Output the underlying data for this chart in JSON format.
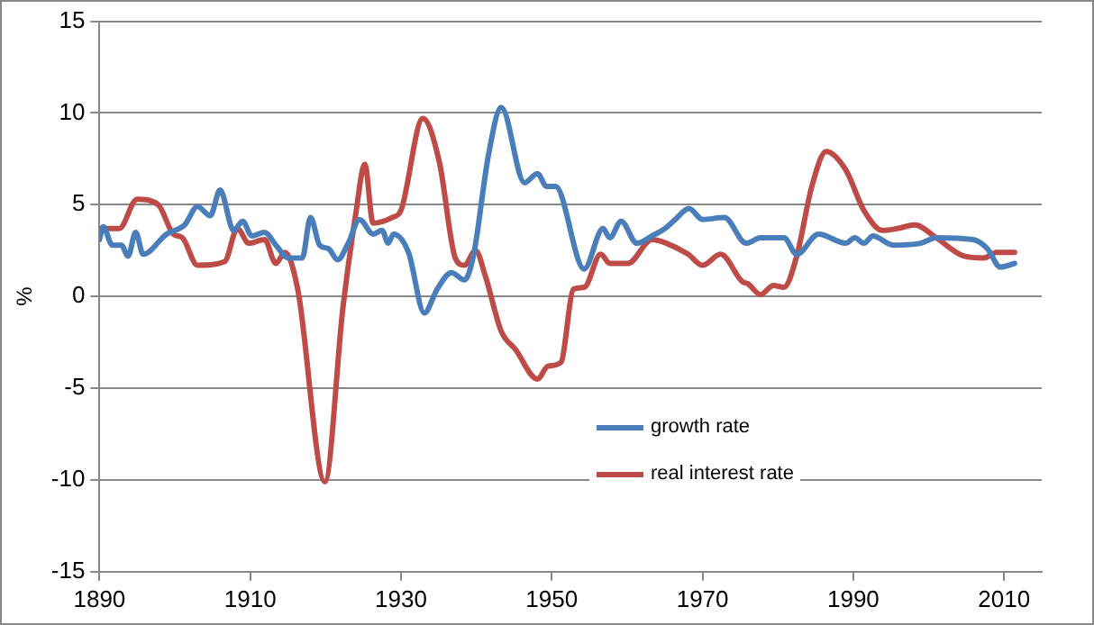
{
  "chart_data": {
    "type": "line",
    "ylabel": "%",
    "xlim": [
      1890,
      2015
    ],
    "xticks": [
      1890,
      1910,
      1930,
      1950,
      1970,
      1990,
      2010
    ],
    "ylim": [
      -15,
      15
    ],
    "yticks": [
      -15,
      -10,
      -5,
      0,
      5,
      10,
      15
    ],
    "grid": "y",
    "legend": "bottom right",
    "marker": "none",
    "line_style": "solid",
    "series": [
      {
        "name": "growth rate",
        "color": "#4a7ebb",
        "x": [
          1890,
          1890.5,
          1891.7,
          1892.9,
          1893.8,
          1894.8,
          1895.8,
          1898.9,
          1901.3,
          1903,
          1904.7,
          1906,
          1907.8,
          1909,
          1910.2,
          1911.9,
          1913.4,
          1915,
          1916.9,
          1918,
          1919.2,
          1920.4,
          1921.6,
          1923,
          1924.5,
          1926.3,
          1927.5,
          1928.3,
          1929,
          1931,
          1933.1,
          1934.8,
          1936.7,
          1938.4,
          1939.6,
          1941.6,
          1943.3,
          1946.4,
          1948.1,
          1949.3,
          1950.5,
          1954.3,
          1956.8,
          1957.7,
          1959.2,
          1961.3,
          1963.3,
          1965,
          1966.4,
          1968.2,
          1970,
          1972.9,
          1975.8,
          1977.7,
          1980.8,
          1982.5,
          1985.4,
          1989,
          1990.2,
          1991.4,
          1992.6,
          1995.3,
          1998.9,
          2001,
          2005.9,
          2007.8,
          2009.5,
          2011.4
        ],
        "values": [
          3.1,
          3.8,
          2.8,
          2.8,
          2.2,
          3.5,
          2.3,
          3.4,
          3.9,
          4.9,
          4.4,
          5.8,
          3.6,
          4.1,
          3.3,
          3.5,
          2.8,
          2.1,
          2.1,
          4.3,
          2.8,
          2.6,
          2.0,
          2.9,
          4.2,
          3.4,
          3.6,
          2.9,
          3.4,
          2.4,
          -0.9,
          0.4,
          1.3,
          0.9,
          2.2,
          7.7,
          10.3,
          6.2,
          6.7,
          6.0,
          6.0,
          1.5,
          3.7,
          3.2,
          4.1,
          2.9,
          3.3,
          3.7,
          4.2,
          4.8,
          4.2,
          4.3,
          2.9,
          3.2,
          3.2,
          2.3,
          3.4,
          2.9,
          3.2,
          2.9,
          3.3,
          2.8,
          2.9,
          3.2,
          3.1,
          2.6,
          1.6,
          1.8
        ]
      },
      {
        "name": "real interest rate",
        "color": "#be4b48",
        "x": [
          1890,
          1892.6,
          1895,
          1897.8,
          1899.8,
          1901,
          1903,
          1906.6,
          1908.3,
          1909.8,
          1911.9,
          1913.4,
          1914.6,
          1916.3,
          1919.9,
          1922.3,
          1924,
          1925.2,
          1926.3,
          1928.8,
          1930,
          1932.9,
          1935.1,
          1937.2,
          1938.4,
          1939.9,
          1941.2,
          1943.3,
          1945.2,
          1948.1,
          1949.5,
          1951.2,
          1952.9,
          1954.3,
          1956.5,
          1957.7,
          1960.1,
          1963.3,
          1965.2,
          1968.1,
          1970,
          1972.4,
          1975.3,
          1976,
          1977.7,
          1979.4,
          1980.8,
          1982.5,
          1984.5,
          1986.4,
          1989,
          1991.4,
          1993.9,
          1995.8,
          1998.2,
          2001,
          2004.7,
          2007.3,
          2009,
          2011.4
        ],
        "values": [
          3.7,
          3.7,
          5.3,
          5.0,
          3.4,
          3.2,
          1.7,
          1.9,
          3.7,
          2.9,
          3.1,
          1.8,
          2.4,
          0.4,
          -10.1,
          -0.6,
          4.5,
          7.2,
          4.0,
          4.3,
          4.7,
          9.7,
          7.3,
          2.1,
          1.7,
          2.5,
          1.1,
          -1.9,
          -2.9,
          -4.5,
          -3.8,
          -3.6,
          0.4,
          0.5,
          2.3,
          1.8,
          1.8,
          3.1,
          2.9,
          2.3,
          1.7,
          2.3,
          0.8,
          0.7,
          0.1,
          0.6,
          0.5,
          2.2,
          6.0,
          7.9,
          6.9,
          4.7,
          3.6,
          3.7,
          3.9,
          3.2,
          2.2,
          2.1,
          2.4,
          2.4
        ]
      }
    ]
  }
}
